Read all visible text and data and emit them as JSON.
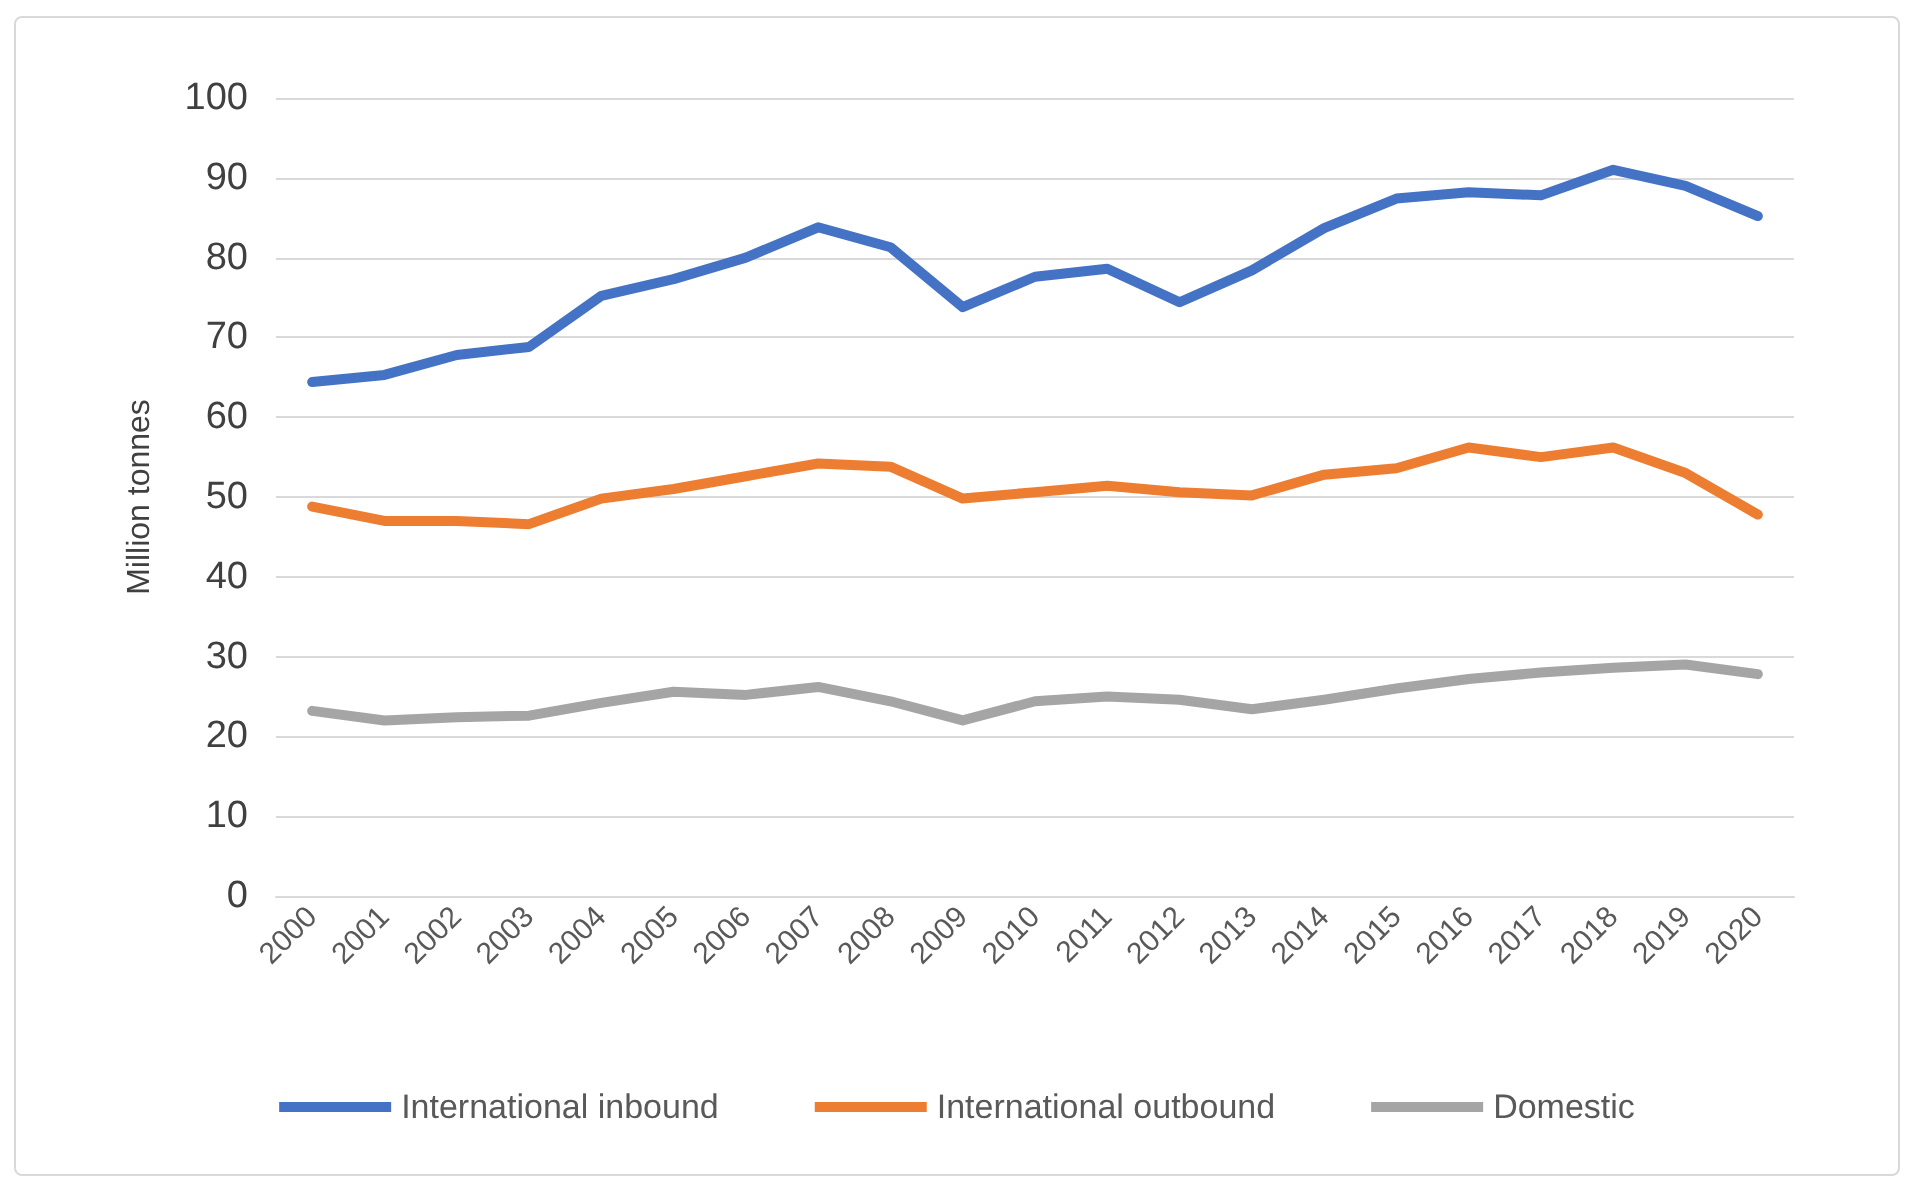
{
  "chart_data": {
    "type": "line",
    "ylabel": "Million tonnes",
    "categories": [
      "2000",
      "2001",
      "2002",
      "2003",
      "2004",
      "2005",
      "2006",
      "2007",
      "2008",
      "2009",
      "2010",
      "2011",
      "2012",
      "2013",
      "2014",
      "2015",
      "2016",
      "2017",
      "2018",
      "2019",
      "2020"
    ],
    "series": [
      {
        "name": "International inbound",
        "color": "#4472c4",
        "values": [
          64.4,
          65.3,
          67.8,
          68.8,
          75.2,
          77.3,
          80.0,
          83.8,
          81.3,
          73.8,
          77.6,
          78.6,
          74.4,
          78.4,
          83.7,
          87.4,
          88.2,
          87.8,
          91.0,
          89.0,
          85.2
        ]
      },
      {
        "name": "International outbound",
        "color": "#ed7d31",
        "values": [
          48.8,
          47.0,
          47.0,
          46.6,
          49.8,
          51.0,
          52.6,
          54.2,
          53.8,
          49.8,
          50.6,
          51.4,
          50.6,
          50.2,
          52.8,
          53.6,
          56.2,
          55.0,
          56.2,
          53.0,
          47.8
        ]
      },
      {
        "name": "Domestic",
        "color": "#a5a5a5",
        "values": [
          23.2,
          22.0,
          22.4,
          22.6,
          24.2,
          25.6,
          25.2,
          26.2,
          24.4,
          22.0,
          24.4,
          25.0,
          24.6,
          23.4,
          24.6,
          26.0,
          27.2,
          28.0,
          28.6,
          29.0,
          27.8
        ]
      }
    ],
    "ylim": [
      0,
      100
    ],
    "yticks": [
      0,
      10,
      20,
      30,
      40,
      50,
      60,
      70,
      80,
      90,
      100
    ],
    "grid": "y",
    "legend": "bottom"
  }
}
